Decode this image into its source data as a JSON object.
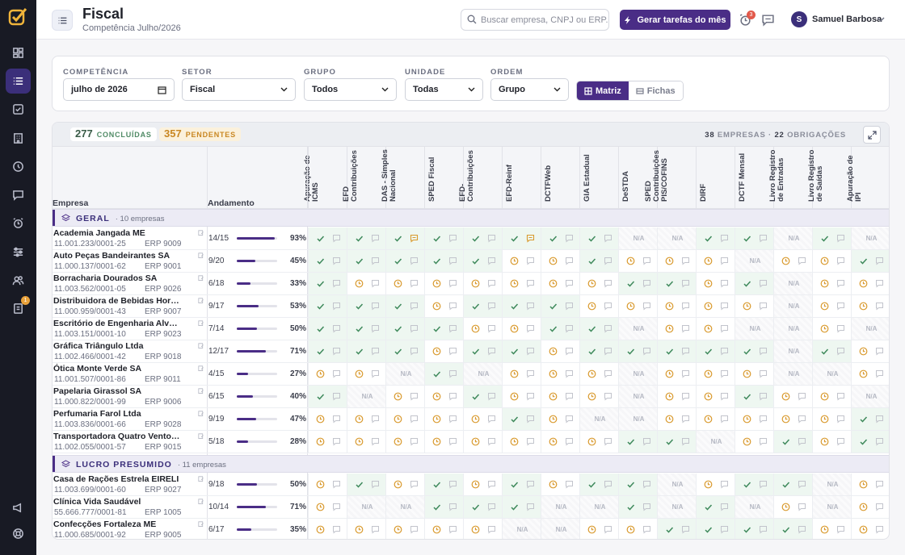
{
  "nav": {
    "task_badge": "1"
  },
  "header": {
    "title": "Fiscal",
    "subtitle": "Competência Julho/2026",
    "search_placeholder": "Buscar empresa, CNPJ ou ERP...",
    "generate_label": "Gerar tarefas do mês",
    "alarm_badge": "3",
    "user_initial": "S",
    "user_name": "Samuel Barbosa"
  },
  "filters": {
    "competencia_label": "COMPETÊNCIA",
    "competencia_value": "julho de 2026",
    "setor_label": "SETOR",
    "setor_value": "Fiscal",
    "grupo_label": "GRUPO",
    "grupo_value": "Todos",
    "unidade_label": "UNIDADE",
    "unidade_value": "Todas",
    "ordem_label": "ORDEM",
    "ordem_value": "Grupo",
    "view_matrix": "Matriz",
    "view_cards": "Fichas"
  },
  "stats": {
    "done_count": "277",
    "done_label": "CONCLUÍDAS",
    "pending_count": "357",
    "pending_label": "PENDENTES",
    "companies": "38",
    "companies_label": "EMPRESAS ·",
    "obligations": "22",
    "obligations_label": "OBRIGAÇÕES"
  },
  "columns": {
    "empresa": "Empresa",
    "andamento": "Andamento",
    "obligations": [
      "Apuração de ICMS",
      "EFD Contribuições",
      "DAS - Simples Nacional",
      "SPED Fiscal",
      "EFD-Contribuições",
      "EFD-Reinf",
      "DCTFWeb",
      "GIA Estadual",
      "DeSTDA",
      "SPED Contribuições PIS/COFINS",
      "DIRF",
      "DCTF Mensal",
      "Livro Registro de Entradas",
      "Livro Registro de Saídas",
      "Apuração de IPI"
    ]
  },
  "na_label": "N/A",
  "groups": [
    {
      "name": "GERAL",
      "count": "· 10 empresas",
      "rows": [
        {
          "name": "Academia Jangada ME",
          "cnpj": "11.001.233/0001-25",
          "erp": "ERP 9009",
          "frac": "14/15",
          "pct": "93%",
          "progress": 0.93,
          "cells": "DDHDDHDDNNDDNDN"
        },
        {
          "name": "Auto Peças Bandeirantes SA",
          "cnpj": "11.000.137/0001-62",
          "erp": "ERP 9001",
          "frac": "9/20",
          "pct": "45%",
          "progress": 0.45,
          "cells": "DDDDDPPDPPPNPPD"
        },
        {
          "name": "Borracharia Dourados SA",
          "cnpj": "11.003.562/0001-05",
          "erp": "ERP 9026",
          "frac": "6/18",
          "pct": "33%",
          "progress": 0.33,
          "cells": "DPPPPPPPDDPDNPP"
        },
        {
          "name": "Distribuidora de Bebidas Horizonte",
          "cnpj": "11.000.959/0001-43",
          "erp": "ERP 9007",
          "frac": "9/17",
          "pct": "53%",
          "progress": 0.53,
          "cells": "DDDPDDDPPPPPNPP"
        },
        {
          "name": "Escritório de Engenharia Alvorada",
          "cnpj": "11.003.151/0001-10",
          "erp": "ERP 9023",
          "frac": "7/14",
          "pct": "50%",
          "progress": 0.5,
          "cells": "DDDDPPDDNPPNNPN"
        },
        {
          "name": "Gráfica Triângulo Ltda",
          "cnpj": "11.002.466/0001-42",
          "erp": "ERP 9018",
          "frac": "12/17",
          "pct": "71%",
          "progress": 0.71,
          "cells": "DDDPDDPDDDDDNDP"
        },
        {
          "name": "Ótica Monte Verde SA",
          "cnpj": "11.001.507/0001-86",
          "erp": "ERP 9011",
          "frac": "4/15",
          "pct": "27%",
          "progress": 0.27,
          "cells": "PPNDNPPPNPPPNNP"
        },
        {
          "name": "Papelaria Girassol SA",
          "cnpj": "11.000.822/0001-99",
          "erp": "ERP 9006",
          "frac": "6/15",
          "pct": "40%",
          "progress": 0.4,
          "cells": "DNPPDPPPNPPDPPN"
        },
        {
          "name": "Perfumaria Farol Ltda",
          "cnpj": "11.003.836/0001-66",
          "erp": "ERP 9028",
          "frac": "9/19",
          "pct": "47%",
          "progress": 0.47,
          "cells": "PPPPPDPNNPPPPPD"
        },
        {
          "name": "Transportadora Quatro Ventos Ltda",
          "cnpj": "11.002.055/0001-57",
          "erp": "ERP 9015",
          "frac": "5/18",
          "pct": "28%",
          "progress": 0.28,
          "cells": "PPPPPPPPDDNPDPD"
        }
      ]
    },
    {
      "name": "LUCRO PRESUMIDO",
      "count": "· 11 empresas",
      "rows": [
        {
          "name": "Casa de Rações Estrela EIRELI",
          "cnpj": "11.003.699/0001-60",
          "erp": "ERP 9027",
          "frac": "9/18",
          "pct": "50%",
          "progress": 0.5,
          "cells": "PDPDPDPDDNPDDNP"
        },
        {
          "name": "Clínica Vida Saudável",
          "cnpj": "55.666.777/0001-81",
          "erp": "ERP 1005",
          "frac": "10/14",
          "pct": "71%",
          "progress": 0.71,
          "cells": "PNNDDDNNDNDNPNP"
        },
        {
          "name": "Confecções Fortaleza ME",
          "cnpj": "11.000.685/0001-92",
          "erp": "ERP 9005",
          "frac": "6/17",
          "pct": "35%",
          "progress": 0.35,
          "cells": "PPPPPNNPPDDDDPP"
        }
      ]
    }
  ]
}
